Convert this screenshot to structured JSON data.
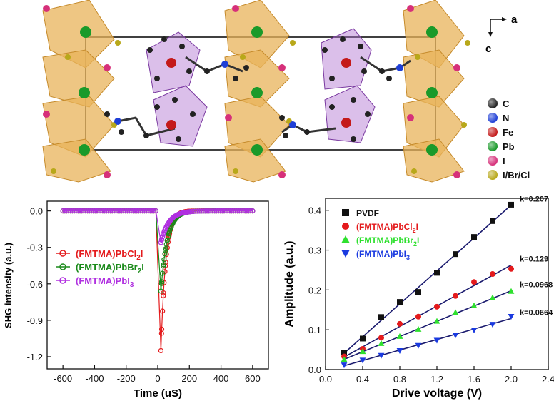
{
  "crystal": {
    "axes": {
      "a": "a",
      "c": "c"
    },
    "legend": [
      {
        "label": "C",
        "color": "#222222"
      },
      {
        "label": "N",
        "color": "#1f3fd6"
      },
      {
        "label": "Fe",
        "color": "#c41a1a"
      },
      {
        "label": "Pb",
        "color": "#1a9a2a"
      },
      {
        "label": "I",
        "color": "#d6307a"
      },
      {
        "label": "I/Br/Cl",
        "color": "#b8a81a"
      }
    ]
  },
  "chart_data": [
    {
      "type": "scatter",
      "title": "",
      "xlabel": "Time (uS)",
      "ylabel": "SHG intensity (a.u.)",
      "xlim": [
        -700,
        700
      ],
      "ylim": [
        -1.3,
        0.08
      ],
      "xticks": [
        -600,
        -400,
        -200,
        0,
        200,
        400,
        600
      ],
      "yticks": [
        0.0,
        -0.3,
        -0.6,
        -0.9,
        -1.2
      ],
      "xtick_labels": [
        "-600",
        "-400",
        "-200",
        "0",
        "200",
        "400",
        "600"
      ],
      "ytick_labels": [
        "0.0",
        "-0.3",
        "-0.6",
        "-0.9",
        "-1.2"
      ],
      "legend_position": "middle-left",
      "series": [
        {
          "name": "(FMTMA)PbCl2I",
          "parts": [
            "(FMTMA)PbCl",
            "2",
            "I"
          ],
          "color": "#e41a1c",
          "peak": -1.15,
          "tau": 30
        },
        {
          "name": "(FMTMA)PbBr2I",
          "parts": [
            "(FMTMA)PbBr",
            "2",
            "I"
          ],
          "color": "#1a8a1a",
          "peak": -0.66,
          "tau": 40
        },
        {
          "name": "(FMTMA)PbI3",
          "parts": [
            "(FMTMA)PbI",
            "3",
            ""
          ],
          "color": "#b030e0",
          "peak": -0.26,
          "tau": 50
        }
      ]
    },
    {
      "type": "scatter",
      "title": "",
      "xlabel": "Drive voltage (V)",
      "ylabel": "Amplitude (a.u.)",
      "xlim": [
        0.0,
        2.4
      ],
      "ylim": [
        0.0,
        0.43
      ],
      "xticks": [
        0.0,
        0.4,
        0.8,
        1.2,
        1.6,
        2.0,
        2.4
      ],
      "yticks": [
        0.0,
        0.1,
        0.2,
        0.3,
        0.4
      ],
      "xtick_labels": [
        "0.0",
        "0.4",
        "0.8",
        "1.2",
        "1.6",
        "2.0",
        "2.4"
      ],
      "ytick_labels": [
        "0.0",
        "0.1",
        "0.2",
        "0.3",
        "0.4"
      ],
      "legend_position": "top-left",
      "x": [
        0.2,
        0.4,
        0.6,
        0.8,
        1.0,
        1.2,
        1.4,
        1.6,
        1.8,
        2.0
      ],
      "series": [
        {
          "name": "PVDF",
          "parts": [
            "PVDF",
            "",
            ""
          ],
          "marker": "square",
          "color": "#111111",
          "fit_color": "#1a1a6e",
          "k": "k=0.207",
          "values": [
            0.043,
            0.078,
            0.132,
            0.17,
            0.195,
            0.243,
            0.29,
            0.333,
            0.373,
            0.414
          ]
        },
        {
          "name": "(FMTMA)PbCl2I",
          "parts": [
            "(FMTMA)PbCl",
            "2",
            "I"
          ],
          "marker": "circle",
          "color": "#e41a1c",
          "fit_color": "#1a1a6e",
          "k": "k=0.129",
          "values": [
            0.033,
            0.052,
            0.08,
            0.115,
            0.133,
            0.158,
            0.185,
            0.22,
            0.24,
            0.253
          ]
        },
        {
          "name": "(FMTMA)PbBr2I",
          "parts": [
            "(FMTMA)PbBr",
            "2",
            "I"
          ],
          "marker": "triangle-up",
          "color": "#2ee02e",
          "fit_color": "#1a1a6e",
          "k": "k=0.0968",
          "values": [
            0.025,
            0.045,
            0.065,
            0.083,
            0.101,
            0.121,
            0.143,
            0.16,
            0.18,
            0.196
          ]
        },
        {
          "name": "(FMTMA)PbI3",
          "parts": [
            "(FMTMA)PbI",
            "3",
            ""
          ],
          "marker": "triangle-down",
          "color": "#1a3ae0",
          "fit_color": "#1a1a6e",
          "k": "k=0.0664",
          "values": [
            0.012,
            0.024,
            0.036,
            0.048,
            0.061,
            0.074,
            0.087,
            0.1,
            0.114,
            0.134
          ]
        }
      ]
    }
  ]
}
